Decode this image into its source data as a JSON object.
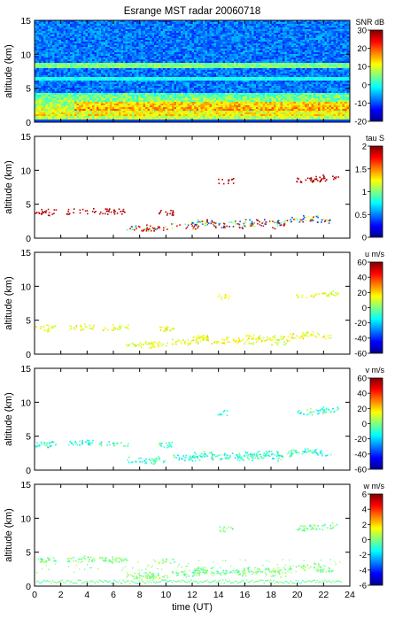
{
  "chart_data": {
    "type": "heatmap",
    "title": "Esrange MST radar 20060718",
    "xlabel": "time (UT)",
    "xlim": [
      0,
      24
    ],
    "xticks": [
      "0",
      "2",
      "4",
      "6",
      "8",
      "10",
      "12",
      "14",
      "16",
      "18",
      "20",
      "22",
      "24"
    ],
    "panels": [
      {
        "ylabel": "altitude (km)",
        "ylim": [
          0,
          15
        ],
        "yticks": [
          "0",
          "5",
          "10",
          "15"
        ],
        "colorbar_label": "SNR dB",
        "colorbar_range": [
          -20,
          30
        ],
        "colorbar_ticks": [
          "30",
          "20",
          "10",
          "0",
          "-10",
          "-20"
        ],
        "kind": "snr"
      },
      {
        "ylabel": "altitude (km)",
        "ylim": [
          0,
          15
        ],
        "yticks": [
          "0",
          "5",
          "10",
          "15"
        ],
        "colorbar_label": "tau S",
        "colorbar_range": [
          0,
          2
        ],
        "colorbar_ticks": [
          "2",
          "1.5",
          "1",
          "0.5",
          "0"
        ],
        "kind": "tau"
      },
      {
        "ylabel": "altitude (km)",
        "ylim": [
          0,
          15
        ],
        "yticks": [
          "0",
          "5",
          "10",
          "15"
        ],
        "colorbar_label": "u m/s",
        "colorbar_range": [
          -60,
          60
        ],
        "colorbar_ticks": [
          "60",
          "40",
          "20",
          "0",
          "-20",
          "-40",
          "-60"
        ],
        "kind": "u"
      },
      {
        "ylabel": "altitude (km)",
        "ylim": [
          0,
          15
        ],
        "yticks": [
          "0",
          "5",
          "10",
          "15"
        ],
        "colorbar_label": "v m/s",
        "colorbar_range": [
          -60,
          60
        ],
        "colorbar_ticks": [
          "60",
          "40",
          "20",
          "0",
          "-20",
          "-40",
          "-60"
        ],
        "kind": "v"
      },
      {
        "ylabel": "altitude (km)",
        "ylim": [
          0,
          15
        ],
        "yticks": [
          "0",
          "5",
          "10",
          "15"
        ],
        "colorbar_label": "w m/s",
        "colorbar_range": [
          -6,
          6
        ],
        "colorbar_ticks": [
          "6",
          "4",
          "2",
          "0",
          "-2",
          "-4",
          "-6"
        ],
        "kind": "w"
      }
    ],
    "colormap": [
      "#00008f",
      "#0000ff",
      "#0080ff",
      "#00ffff",
      "#80ff80",
      "#ffff00",
      "#ff8000",
      "#ff0000",
      "#800000"
    ]
  }
}
